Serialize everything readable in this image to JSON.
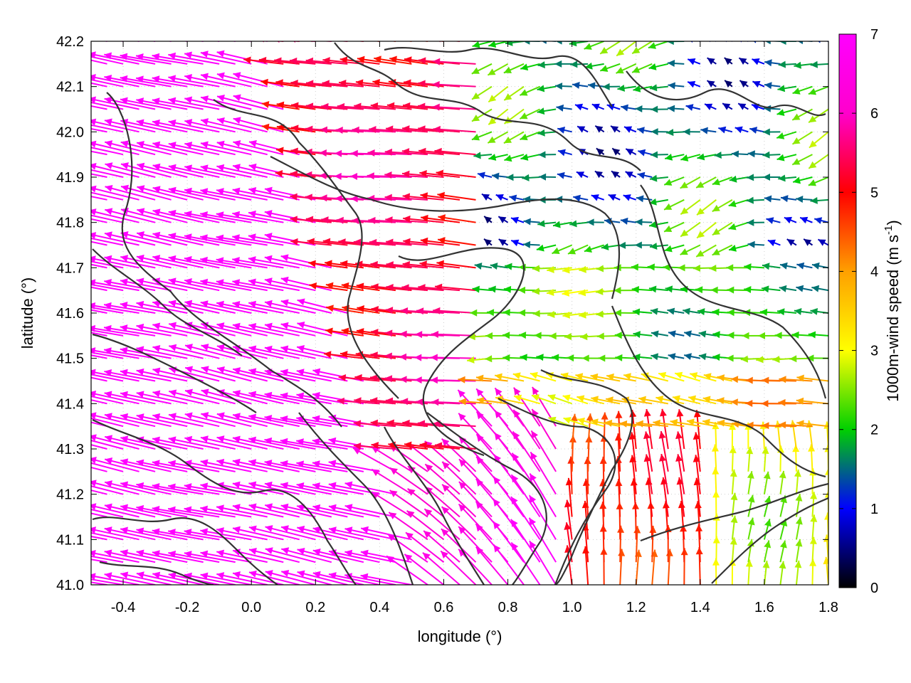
{
  "chart_data": {
    "type": "vector-field",
    "title": "",
    "xlabel": "longitude (°)",
    "ylabel": "latitude (°)",
    "xlim": [
      -0.5,
      1.8
    ],
    "ylim": [
      41.0,
      42.2
    ],
    "x_ticks": [
      "-0.4",
      "-0.2",
      "0.0",
      "0.2",
      "0.4",
      "0.6",
      "0.8",
      "1.0",
      "1.2",
      "1.4",
      "1.6",
      "1.8"
    ],
    "x_tick_values": [
      -0.4,
      -0.2,
      0.0,
      0.2,
      0.4,
      0.6,
      0.8,
      1.0,
      1.2,
      1.4,
      1.6,
      1.8
    ],
    "y_ticks": [
      "41.0",
      "41.1",
      "41.2",
      "41.3",
      "41.4",
      "41.5",
      "41.6",
      "41.7",
      "41.8",
      "41.9",
      "42.0",
      "42.1",
      "42.2"
    ],
    "y_tick_values": [
      41.0,
      41.1,
      41.2,
      41.3,
      41.4,
      41.5,
      41.6,
      41.7,
      41.8,
      41.9,
      42.0,
      42.1,
      42.2
    ],
    "grid": true,
    "colorbar": {
      "label_text": "1000m-wind speed (m s",
      "label_sup": "-1",
      "label_close": ")",
      "range": [
        0,
        7
      ],
      "ticks": [
        "0",
        "1",
        "2",
        "3",
        "4",
        "5",
        "6",
        "7"
      ],
      "tick_values": [
        0,
        1,
        2,
        3,
        4,
        5,
        6,
        7
      ],
      "colors": [
        "#000000",
        "#0000ff",
        "#00d000",
        "#ffff00",
        "#ffa000",
        "#ff0000",
        "#ff00ff"
      ]
    },
    "wind_field_regions": [
      {
        "region": "west (lon -0.5 to 0.3)",
        "speed_ms": 7,
        "direction": "toward west-northwest"
      },
      {
        "region": "central band (lon 0.3 to 0.9, lat 41.3-41.9)",
        "speed_ms": 5.5,
        "direction": "toward west"
      },
      {
        "region": "north-east (lon 0.9 to 1.8, lat 41.7-42.2)",
        "speed_ms": 1.5,
        "direction": "variable, mostly toward west"
      },
      {
        "region": "south-east (lon 1.1 to 1.5, lat 41.0-41.3)",
        "speed_ms": 5,
        "direction": "toward north"
      },
      {
        "region": "far south-east (lon 1.5 to 1.8, lat 41.0-41.3)",
        "speed_ms": 3,
        "direction": "toward north"
      }
    ],
    "contours": "terrain elevation contours drawn in dark gray"
  }
}
